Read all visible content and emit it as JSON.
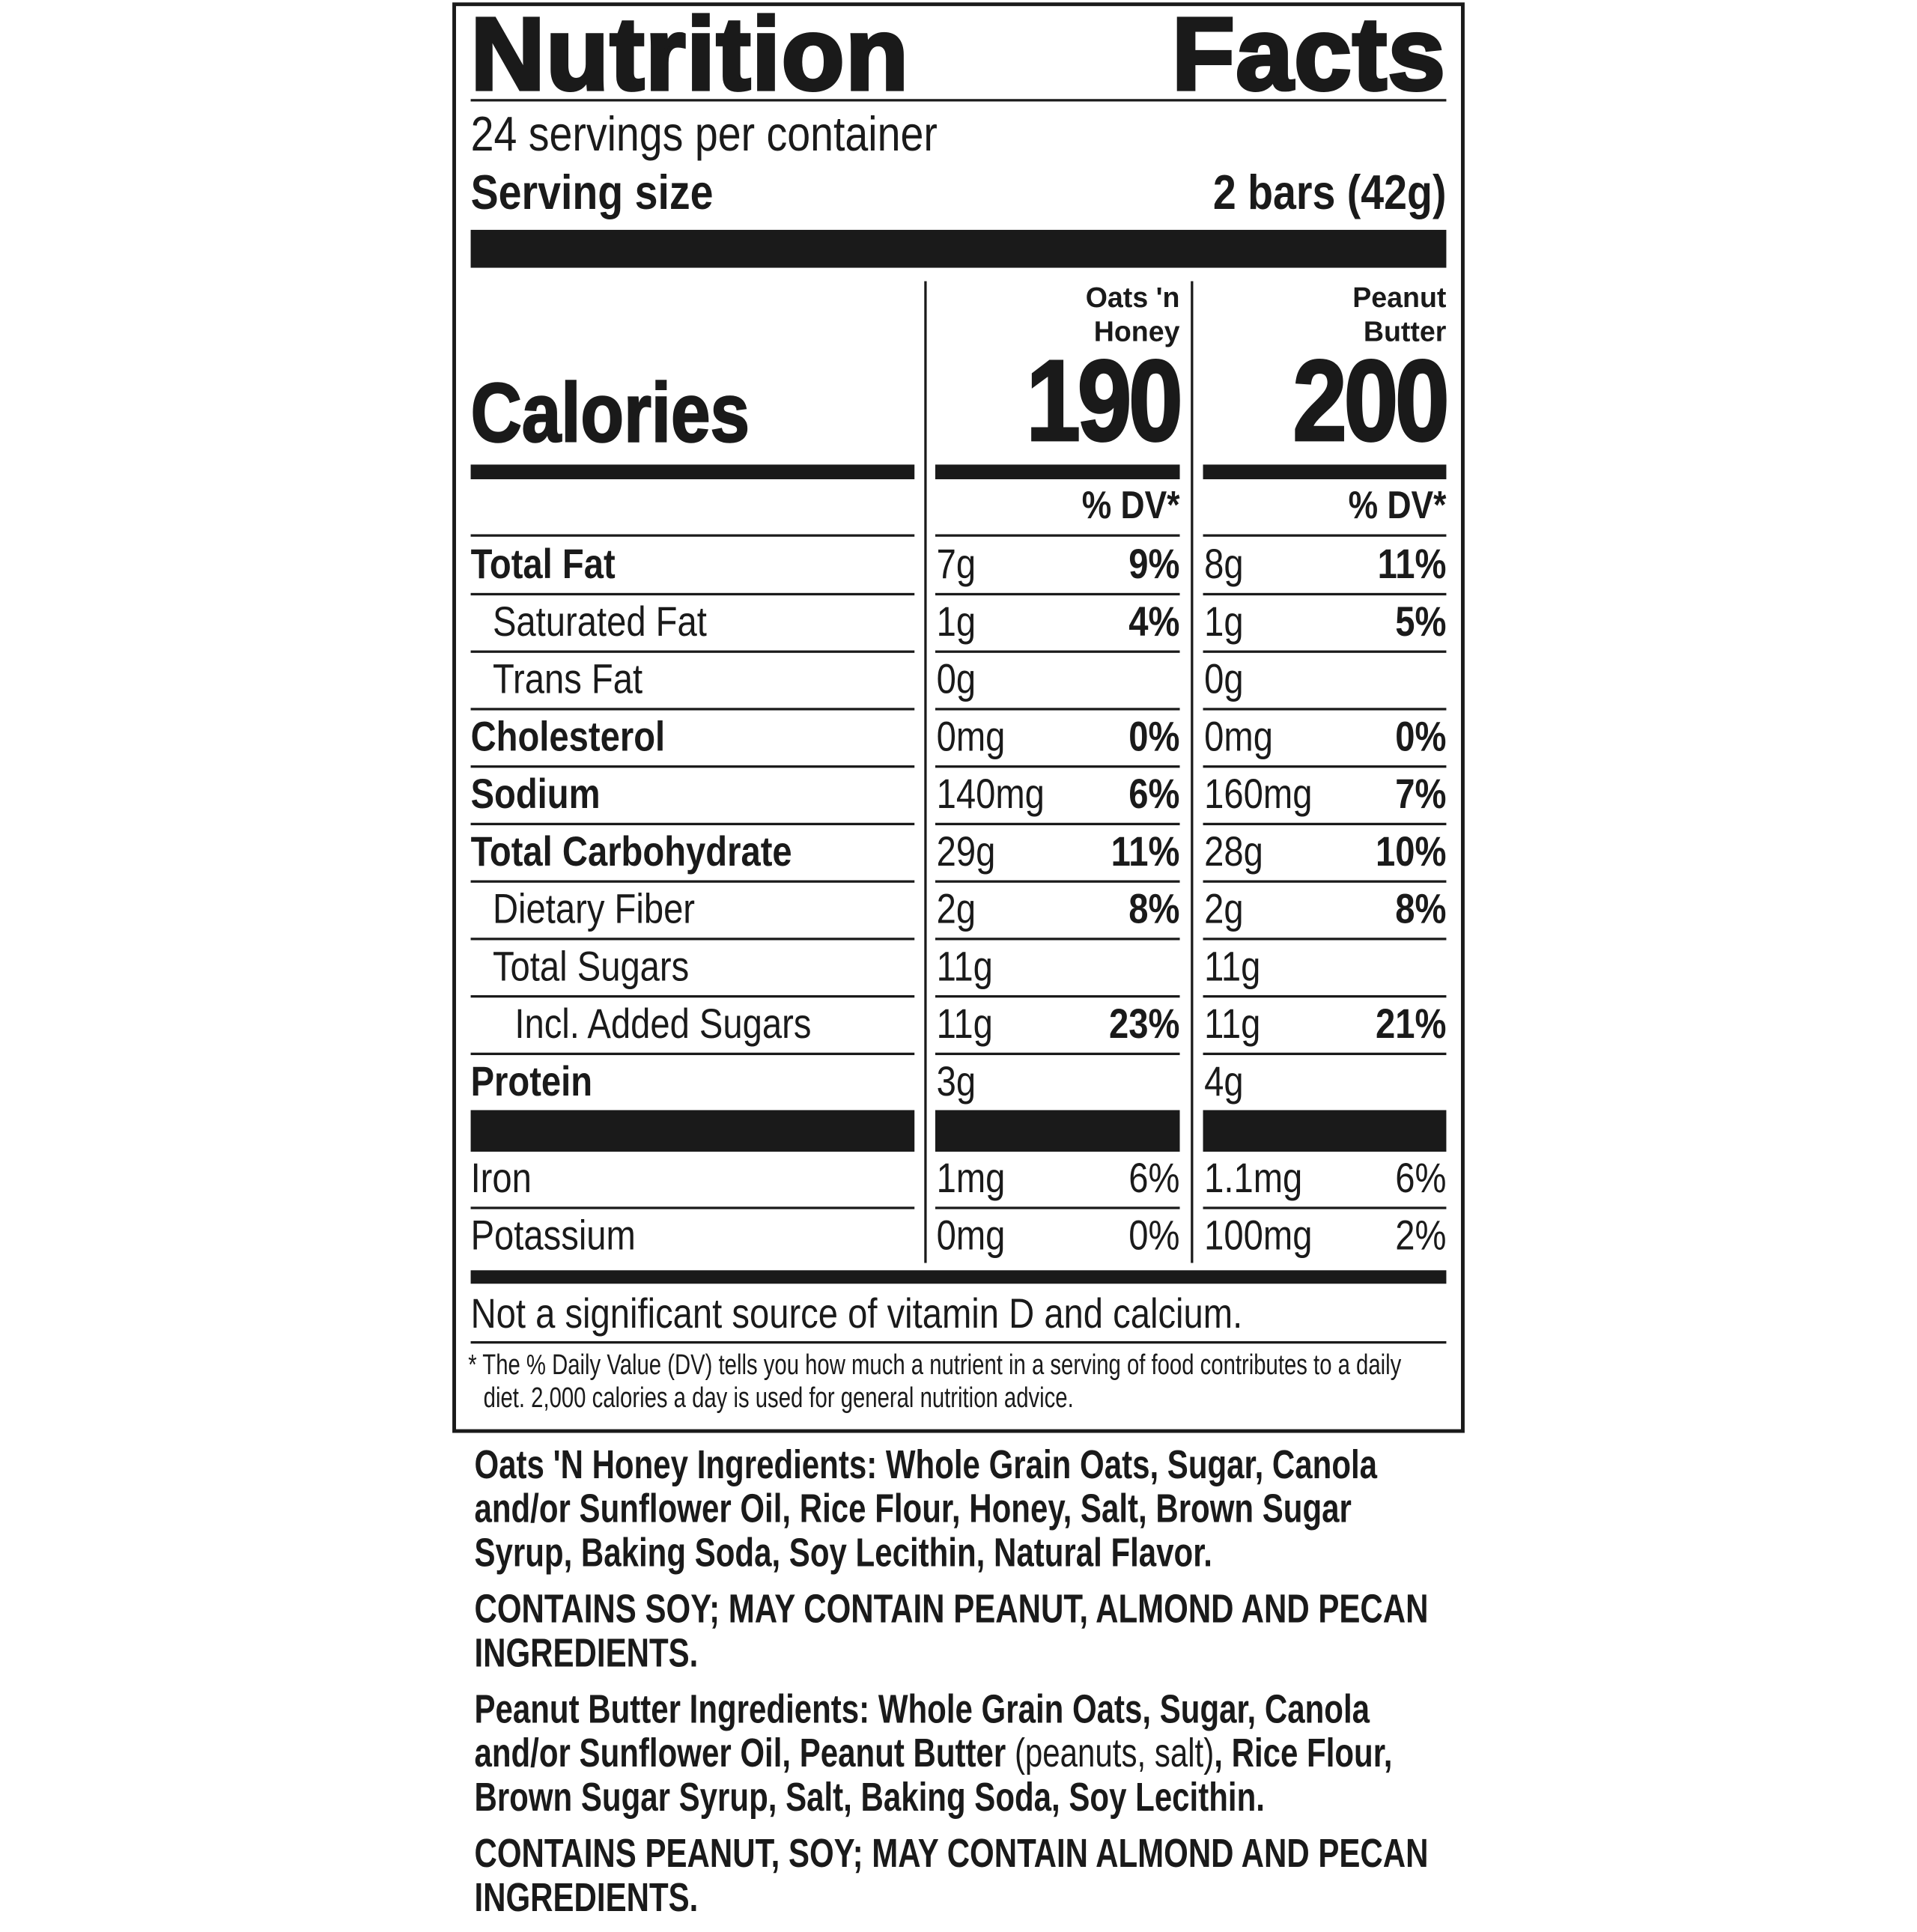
{
  "label": {
    "title": "Nutrition Facts",
    "servings_per_container": "24 servings per container",
    "serving_size_label": "Serving size",
    "serving_size": "2 bars (42g)",
    "calories_label": "Calories",
    "columns": [
      {
        "name": "Oats 'n Honey",
        "calories": "190",
        "dv_header": "% DV*"
      },
      {
        "name": "Peanut Butter",
        "calories": "200",
        "dv_header": "% DV*"
      }
    ],
    "nutrients": [
      {
        "name": "Total Fat",
        "oats_amount": "7g",
        "oats_dv": "9%",
        "pb_amount": "8g",
        "pb_dv": "11%"
      },
      {
        "name": "Saturated Fat",
        "oats_amount": "1g",
        "oats_dv": "4%",
        "pb_amount": "1g",
        "pb_dv": "5%"
      },
      {
        "name": "Trans Fat",
        "oats_amount": "0g",
        "pb_amount": "0g"
      },
      {
        "name": "Cholesterol",
        "oats_amount": "0mg",
        "oats_dv": "0%",
        "pb_amount": "0mg",
        "pb_dv": "0%"
      },
      {
        "name": "Sodium",
        "oats_amount": "140mg",
        "oats_dv": "6%",
        "pb_amount": "160mg",
        "pb_dv": "7%"
      },
      {
        "name": "Total Carbohydrate",
        "oats_amount": "29g",
        "oats_dv": "11%",
        "pb_amount": "28g",
        "pb_dv": "10%"
      },
      {
        "name": "Dietary Fiber",
        "oats_amount": "2g",
        "oats_dv": "8%",
        "pb_amount": "2g",
        "pb_dv": "8%"
      },
      {
        "name": "Total Sugars",
        "oats_amount": "11g",
        "pb_amount": "11g"
      },
      {
        "name": "Incl. Added Sugars",
        "oats_amount": "11g",
        "oats_dv": "23%",
        "pb_amount": "11g",
        "pb_dv": "21%"
      },
      {
        "name": "Protein",
        "oats_amount": "3g",
        "pb_amount": "4g"
      }
    ],
    "minerals": [
      {
        "name": "Iron",
        "oats_amount": "1mg",
        "oats_dv": "6%",
        "pb_amount": "1.1mg",
        "pb_dv": "6%"
      },
      {
        "name": "Potassium",
        "oats_amount": "0mg",
        "oats_dv": "0%",
        "pb_amount": "100mg",
        "pb_dv": "2%"
      }
    ],
    "not_significant": "Not a significant source of vitamin D and calcium.",
    "footnote": "* The % Daily Value (DV) tells you how much a nutrient in a serving of food contributes to a daily diet. 2,000 calories a day is used for general nutrition advice."
  },
  "ingredients": [
    [
      "Oats 'N Honey Ingredients: Whole Grain Oats, Sugar, Canola and/or Sunflower Oil, Rice Flour, Honey, Salt, Brown Sugar Syrup, Baking Soda, Soy Lecithin, Natural Flavor."
    ],
    [
      "CONTAINS SOY; MAY CONTAIN PEANUT, ALMOND AND PECAN INGREDIENTS."
    ],
    [
      "Peanut Butter Ingredients: Whole Grain Oats, Sugar, Canola and/or Sunflower Oil, Peanut Butter",
      " (peanuts, salt)",
      ", Rice Flour, Brown Sugar Syrup, Salt, Baking Soda, Soy Lecithin."
    ],
    [
      "CONTAINS PEANUT, SOY; MAY CONTAIN ALMOND AND PECAN INGREDIENTS."
    ]
  ]
}
